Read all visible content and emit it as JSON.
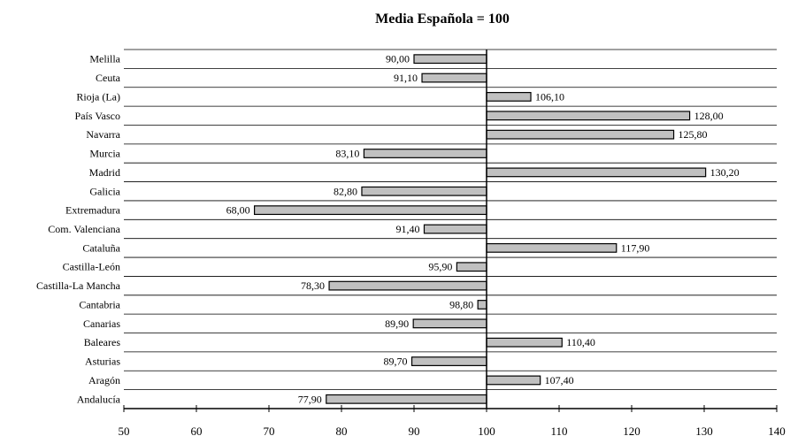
{
  "chart_data": {
    "type": "bar",
    "orientation": "horizontal",
    "title": "Media Española = 100",
    "baseline": 100,
    "xlim": [
      50,
      140
    ],
    "xticks": [
      50,
      60,
      70,
      80,
      90,
      100,
      110,
      120,
      130,
      140
    ],
    "categories": [
      "Melilla",
      "Ceuta",
      "Rioja (La)",
      "País Vasco",
      "Navarra",
      "Murcia",
      "Madrid",
      "Galicia",
      "Extremadura",
      "Com. Valenciana",
      "Cataluña",
      "Castilla-León",
      "Castilla-La Mancha",
      "Cantabria",
      "Canarias",
      "Baleares",
      "Asturias",
      "Aragón",
      "Andalucía"
    ],
    "values": [
      90.0,
      91.1,
      106.1,
      128.0,
      125.8,
      83.1,
      130.2,
      82.8,
      68.0,
      91.4,
      117.9,
      95.9,
      78.3,
      98.8,
      89.9,
      110.4,
      89.7,
      107.4,
      77.9
    ],
    "value_labels": [
      "90,00",
      "91,10",
      "106,10",
      "128,00",
      "125,80",
      "83,10",
      "130,20",
      "82,80",
      "68,00",
      "91,40",
      "117,90",
      "95,90",
      "78,30",
      "98,80",
      "89,90",
      "110,40",
      "89,70",
      "107,40",
      "77,90"
    ],
    "grid": true,
    "bar_color": "#c0c0c0",
    "edge_color": "#000000"
  }
}
